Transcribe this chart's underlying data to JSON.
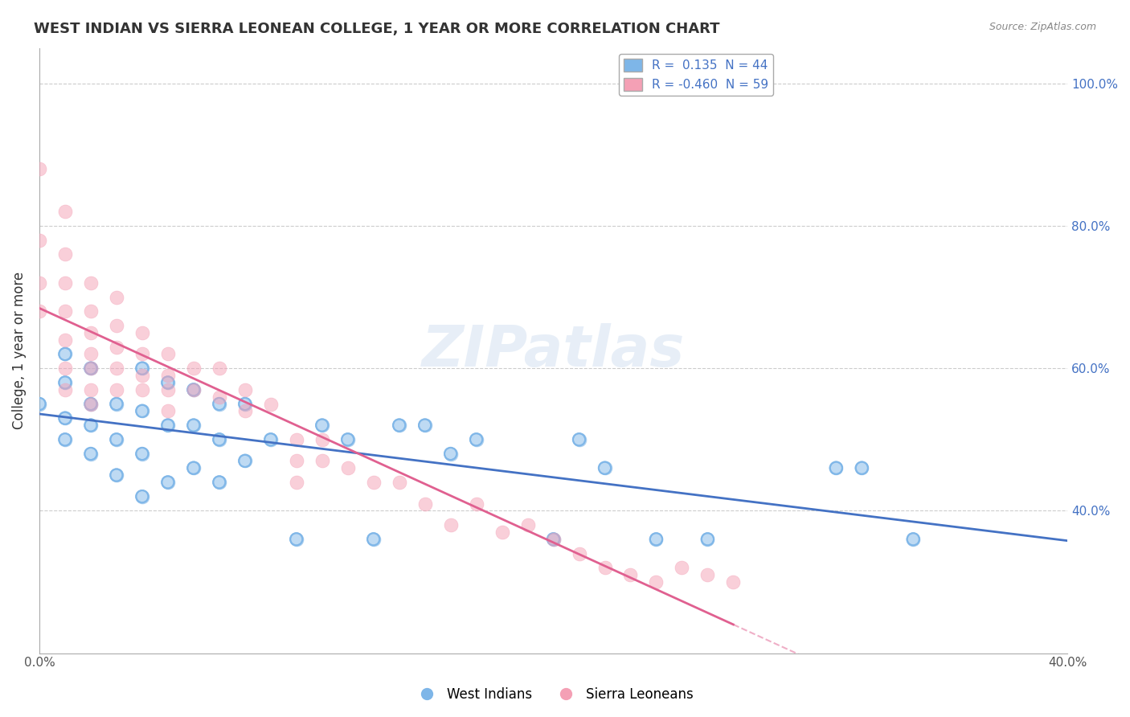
{
  "title": "WEST INDIAN VS SIERRA LEONEAN COLLEGE, 1 YEAR OR MORE CORRELATION CHART",
  "source": "Source: ZipAtlas.com",
  "xlabel": "",
  "ylabel": "College, 1 year or more",
  "xlim": [
    0.0,
    0.4
  ],
  "ylim": [
    0.2,
    1.05
  ],
  "xticks": [
    0.0,
    0.1,
    0.2,
    0.3,
    0.4
  ],
  "xtick_labels": [
    "0.0%",
    "",
    "",
    "",
    "40.0%"
  ],
  "ytick_labels": [
    "100.0%",
    "80.0%",
    "60.0%",
    "40.0%"
  ],
  "ytick_positions": [
    1.0,
    0.8,
    0.6,
    0.4
  ],
  "R_blue": 0.135,
  "N_blue": 44,
  "R_pink": -0.46,
  "N_pink": 59,
  "blue_color": "#7EB6E8",
  "pink_color": "#F4A0B5",
  "blue_line_color": "#4472C4",
  "pink_line_color": "#E06090",
  "watermark": "ZIPatlas",
  "legend_label_blue": "West Indians",
  "legend_label_pink": "Sierra Leoneans",
  "blue_scatter_x": [
    0.0,
    0.01,
    0.01,
    0.01,
    0.01,
    0.02,
    0.02,
    0.02,
    0.02,
    0.03,
    0.03,
    0.03,
    0.04,
    0.04,
    0.04,
    0.04,
    0.05,
    0.05,
    0.05,
    0.06,
    0.06,
    0.06,
    0.07,
    0.07,
    0.07,
    0.08,
    0.08,
    0.09,
    0.1,
    0.11,
    0.12,
    0.13,
    0.14,
    0.15,
    0.16,
    0.17,
    0.2,
    0.21,
    0.22,
    0.24,
    0.26,
    0.31,
    0.32,
    0.34
  ],
  "blue_scatter_y": [
    0.55,
    0.5,
    0.53,
    0.58,
    0.62,
    0.48,
    0.52,
    0.55,
    0.6,
    0.45,
    0.5,
    0.55,
    0.42,
    0.48,
    0.54,
    0.6,
    0.44,
    0.52,
    0.58,
    0.46,
    0.52,
    0.57,
    0.44,
    0.5,
    0.55,
    0.47,
    0.55,
    0.5,
    0.36,
    0.52,
    0.5,
    0.36,
    0.52,
    0.52,
    0.48,
    0.5,
    0.36,
    0.5,
    0.46,
    0.36,
    0.36,
    0.46,
    0.46,
    0.36
  ],
  "pink_scatter_x": [
    0.0,
    0.0,
    0.0,
    0.0,
    0.01,
    0.01,
    0.01,
    0.01,
    0.01,
    0.01,
    0.01,
    0.02,
    0.02,
    0.02,
    0.02,
    0.02,
    0.02,
    0.02,
    0.03,
    0.03,
    0.03,
    0.03,
    0.03,
    0.04,
    0.04,
    0.04,
    0.04,
    0.05,
    0.05,
    0.05,
    0.05,
    0.06,
    0.06,
    0.07,
    0.07,
    0.08,
    0.08,
    0.09,
    0.1,
    0.1,
    0.1,
    0.11,
    0.11,
    0.12,
    0.13,
    0.14,
    0.15,
    0.16,
    0.17,
    0.18,
    0.19,
    0.2,
    0.21,
    0.22,
    0.23,
    0.24,
    0.25,
    0.26,
    0.27
  ],
  "pink_scatter_y": [
    0.88,
    0.78,
    0.72,
    0.68,
    0.82,
    0.76,
    0.72,
    0.68,
    0.64,
    0.6,
    0.57,
    0.72,
    0.68,
    0.65,
    0.62,
    0.6,
    0.57,
    0.55,
    0.7,
    0.66,
    0.63,
    0.6,
    0.57,
    0.65,
    0.62,
    0.59,
    0.57,
    0.62,
    0.59,
    0.57,
    0.54,
    0.6,
    0.57,
    0.6,
    0.56,
    0.57,
    0.54,
    0.55,
    0.5,
    0.47,
    0.44,
    0.5,
    0.47,
    0.46,
    0.44,
    0.44,
    0.41,
    0.38,
    0.41,
    0.37,
    0.38,
    0.36,
    0.34,
    0.32,
    0.31,
    0.3,
    0.32,
    0.31,
    0.3
  ]
}
